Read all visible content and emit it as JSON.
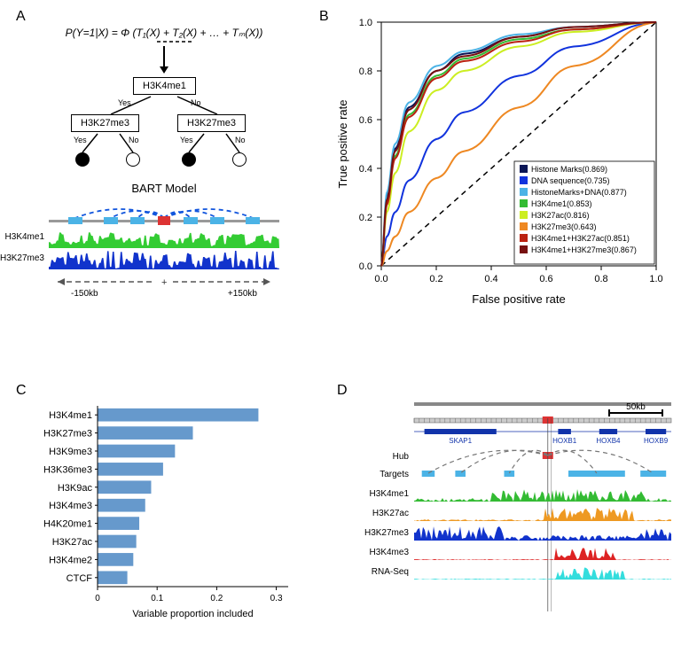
{
  "panelA": {
    "label": "A",
    "formula": "P(Y=1|X) = Φ (T₁(X) + T₂(X) + … + Tₘ(X))",
    "tree": {
      "root": "H3K4me1",
      "left": "H3K27me3",
      "right": "H3K27me3",
      "yes": "Yes",
      "no": "No"
    },
    "model_title": "BART Model",
    "track_labels": [
      "H3K4me1",
      "H3K27me3"
    ],
    "track_colors": [
      "#33cc33",
      "#1133cc"
    ],
    "range_left": "-150kb",
    "range_right": "+150kb"
  },
  "panelB": {
    "label": "B",
    "xlabel": "False positive rate",
    "ylabel": "True positive rate",
    "xlim": [
      0,
      1
    ],
    "ylim": [
      0,
      1
    ],
    "ticks": [
      "0.0",
      "0.2",
      "0.4",
      "0.6",
      "0.8",
      "1.0"
    ],
    "legend": [
      {
        "label": "Histone Marks(0.869)",
        "color": "#0a1555"
      },
      {
        "label": "DNA sequence(0.735)",
        "color": "#1133dd"
      },
      {
        "label": "HistoneMarks+DNA(0.877)",
        "color": "#4bb3e6"
      },
      {
        "label": "H3K4me1(0.853)",
        "color": "#33bb33"
      },
      {
        "label": "H3K27ac(0.816)",
        "color": "#ccee22"
      },
      {
        "label": "H3K27me3(0.643)",
        "color": "#ee8822"
      },
      {
        "label": "H3K4me1+H3K27ac(0.851)",
        "color": "#bb2211"
      },
      {
        "label": "H3K4me1+H3K27me3(0.867)",
        "color": "#771111"
      }
    ],
    "curves": {
      "Histone Marks(0.869)": [
        [
          0,
          0
        ],
        [
          0.02,
          0.28
        ],
        [
          0.05,
          0.48
        ],
        [
          0.1,
          0.65
        ],
        [
          0.2,
          0.8
        ],
        [
          0.3,
          0.87
        ],
        [
          0.5,
          0.94
        ],
        [
          0.7,
          0.98
        ],
        [
          1,
          1
        ]
      ],
      "DNA sequence(0.735)": [
        [
          0,
          0
        ],
        [
          0.02,
          0.12
        ],
        [
          0.05,
          0.22
        ],
        [
          0.1,
          0.35
        ],
        [
          0.2,
          0.52
        ],
        [
          0.3,
          0.63
        ],
        [
          0.5,
          0.78
        ],
        [
          0.7,
          0.9
        ],
        [
          1,
          1
        ]
      ],
      "HistoneMarks+DNA(0.877)": [
        [
          0,
          0
        ],
        [
          0.02,
          0.3
        ],
        [
          0.05,
          0.5
        ],
        [
          0.1,
          0.67
        ],
        [
          0.2,
          0.82
        ],
        [
          0.3,
          0.88
        ],
        [
          0.5,
          0.95
        ],
        [
          0.7,
          0.98
        ],
        [
          1,
          1
        ]
      ],
      "H3K4me1(0.853)": [
        [
          0,
          0
        ],
        [
          0.02,
          0.26
        ],
        [
          0.05,
          0.45
        ],
        [
          0.1,
          0.62
        ],
        [
          0.2,
          0.78
        ],
        [
          0.3,
          0.85
        ],
        [
          0.5,
          0.93
        ],
        [
          0.7,
          0.97
        ],
        [
          1,
          1
        ]
      ],
      "H3K27ac(0.816)": [
        [
          0,
          0
        ],
        [
          0.02,
          0.22
        ],
        [
          0.05,
          0.38
        ],
        [
          0.1,
          0.55
        ],
        [
          0.2,
          0.72
        ],
        [
          0.3,
          0.8
        ],
        [
          0.5,
          0.9
        ],
        [
          0.7,
          0.96
        ],
        [
          1,
          1
        ]
      ],
      "H3K27me3(0.643)": [
        [
          0,
          0
        ],
        [
          0.02,
          0.06
        ],
        [
          0.05,
          0.12
        ],
        [
          0.1,
          0.22
        ],
        [
          0.2,
          0.36
        ],
        [
          0.3,
          0.47
        ],
        [
          0.5,
          0.65
        ],
        [
          0.7,
          0.82
        ],
        [
          1,
          1
        ]
      ],
      "H3K4me1+H3K27ac(0.851)": [
        [
          0,
          0
        ],
        [
          0.02,
          0.25
        ],
        [
          0.05,
          0.44
        ],
        [
          0.1,
          0.61
        ],
        [
          0.2,
          0.77
        ],
        [
          0.3,
          0.84
        ],
        [
          0.5,
          0.92
        ],
        [
          0.7,
          0.97
        ],
        [
          1,
          1
        ]
      ],
      "H3K4me1+H3K27me3(0.867)": [
        [
          0,
          0
        ],
        [
          0.02,
          0.27
        ],
        [
          0.05,
          0.47
        ],
        [
          0.1,
          0.64
        ],
        [
          0.2,
          0.8
        ],
        [
          0.3,
          0.86
        ],
        [
          0.5,
          0.94
        ],
        [
          0.7,
          0.98
        ],
        [
          1,
          1
        ]
      ]
    }
  },
  "panelC": {
    "label": "C",
    "xlabel": "Variable proportion included",
    "bars": [
      {
        "name": "H3K4me1",
        "value": 0.27
      },
      {
        "name": "H3K27me3",
        "value": 0.16
      },
      {
        "name": "H3K9me3",
        "value": 0.13
      },
      {
        "name": "H3K36me3",
        "value": 0.11
      },
      {
        "name": "H3K9ac",
        "value": 0.09
      },
      {
        "name": "H3K4me3",
        "value": 0.08
      },
      {
        "name": "H4K20me1",
        "value": 0.07
      },
      {
        "name": "H3K27ac",
        "value": 0.065
      },
      {
        "name": "H3K4me2",
        "value": 0.06
      },
      {
        "name": "CTCF",
        "value": 0.05
      }
    ],
    "xticks": [
      0,
      0.1,
      0.2,
      0.3
    ],
    "bar_color": "#6699cc",
    "xmax": 0.32
  },
  "panelD": {
    "label": "D",
    "scale": "50kb",
    "genes": [
      "SKAP1",
      "HOXB1",
      "HOXB4",
      "HOXB9"
    ],
    "hub_label": "Hub",
    "targets_label": "Targets",
    "tracks": [
      {
        "name": "H3K4me1",
        "color": "#33bb33"
      },
      {
        "name": "H3K27ac",
        "color": "#ee9922"
      },
      {
        "name": "H3K27me3",
        "color": "#1133cc"
      },
      {
        "name": "H3K4me3",
        "color": "#dd2222"
      },
      {
        "name": "RNA-Seq",
        "color": "#33dddd"
      }
    ]
  }
}
